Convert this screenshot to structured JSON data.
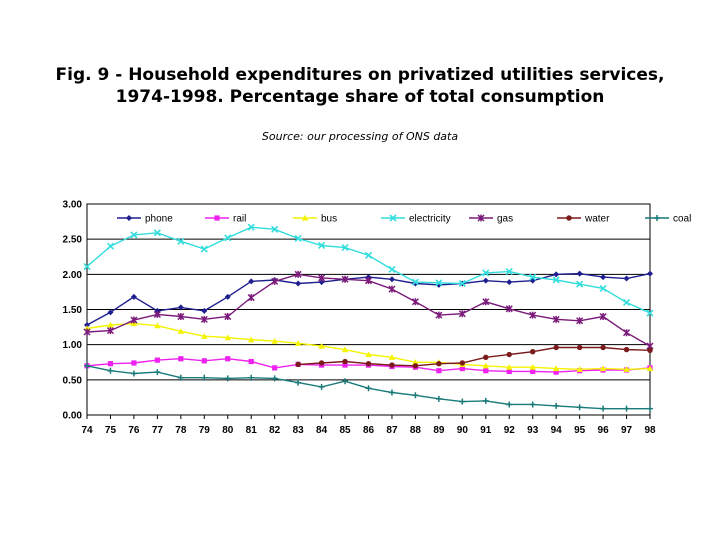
{
  "title_line1": "Fig. 9 - Household expenditures on privatized utilities services,",
  "title_line2": "1974-1998. Percentage share of total consumption",
  "subtitle": "Source: our processing of ONS data",
  "chart_data": {
    "type": "line",
    "title": "Fig. 9 - Household expenditures on privatized utilities services, 1974-1998. Percentage share of total consumption",
    "subtitle": "Source: our processing of ONS data",
    "xlabel": "",
    "ylabel": "",
    "ylim": [
      0,
      3
    ],
    "grid": true,
    "legend_position": "top",
    "x": [
      "74",
      "75",
      "76",
      "77",
      "78",
      "79",
      "80",
      "81",
      "82",
      "83",
      "84",
      "85",
      "86",
      "87",
      "88",
      "89",
      "90",
      "91",
      "92",
      "93",
      "94",
      "95",
      "96",
      "97",
      "98"
    ],
    "y_ticks": [
      "0.00",
      "0.50",
      "1.00",
      "1.50",
      "2.00",
      "2.50",
      "3.00"
    ],
    "series": [
      {
        "name": "phone",
        "color": "#1f1f8f",
        "marker": "diamond",
        "values": [
          1.28,
          1.46,
          1.68,
          1.48,
          1.53,
          1.48,
          1.68,
          1.9,
          1.92,
          1.87,
          1.89,
          1.93,
          1.96,
          1.93,
          1.87,
          1.85,
          1.87,
          1.91,
          1.89,
          1.91,
          2.0,
          2.01,
          1.96,
          1.94,
          2.01
        ]
      },
      {
        "name": "rail",
        "color": "#ee22ee",
        "marker": "square",
        "values": [
          0.7,
          0.73,
          0.74,
          0.78,
          0.8,
          0.77,
          0.8,
          0.76,
          0.67,
          0.72,
          0.71,
          0.71,
          0.71,
          0.69,
          0.68,
          0.63,
          0.66,
          0.63,
          0.62,
          0.62,
          0.61,
          0.63,
          0.64,
          0.64,
          0.67
        ]
      },
      {
        "name": "bus",
        "color": "#f4f400",
        "marker": "triangle",
        "values": [
          1.23,
          1.28,
          1.3,
          1.27,
          1.19,
          1.12,
          1.1,
          1.07,
          1.05,
          1.02,
          0.98,
          0.93,
          0.86,
          0.82,
          0.75,
          0.75,
          0.72,
          0.7,
          0.68,
          0.68,
          0.66,
          0.65,
          0.66,
          0.65,
          0.66
        ]
      },
      {
        "name": "electricity",
        "color": "#33dddd",
        "marker": "x",
        "values": [
          2.11,
          2.4,
          2.56,
          2.59,
          2.47,
          2.36,
          2.52,
          2.67,
          2.64,
          2.51,
          2.41,
          2.38,
          2.27,
          2.07,
          1.89,
          1.88,
          1.87,
          2.02,
          2.04,
          1.96,
          1.92,
          1.86,
          1.8,
          1.6,
          1.45
        ]
      },
      {
        "name": "gas",
        "color": "#7a1a7a",
        "marker": "star",
        "values": [
          1.18,
          1.2,
          1.35,
          1.43,
          1.4,
          1.36,
          1.4,
          1.67,
          1.9,
          2.0,
          1.95,
          1.93,
          1.91,
          1.79,
          1.61,
          1.42,
          1.44,
          1.61,
          1.51,
          1.42,
          1.36,
          1.34,
          1.4,
          1.17,
          0.98
        ]
      },
      {
        "name": "water",
        "color": "#7a1a1a",
        "marker": "circle",
        "values": [
          null,
          null,
          null,
          null,
          null,
          null,
          null,
          null,
          null,
          0.72,
          0.74,
          0.76,
          0.73,
          0.71,
          0.7,
          0.73,
          0.74,
          0.82,
          0.86,
          0.9,
          0.96,
          0.96,
          0.96,
          0.93,
          0.92
        ]
      },
      {
        "name": "coal",
        "color": "#1a7a7a",
        "marker": "plus",
        "values": [
          0.7,
          0.63,
          0.59,
          0.61,
          0.53,
          0.53,
          0.52,
          0.53,
          0.52,
          0.46,
          0.4,
          0.48,
          0.38,
          0.32,
          0.28,
          0.23,
          0.19,
          0.2,
          0.15,
          0.15,
          0.13,
          0.11,
          0.09,
          0.09,
          0.09
        ]
      }
    ]
  }
}
